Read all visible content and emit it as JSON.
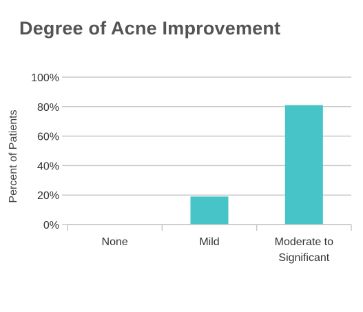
{
  "chart_data": {
    "type": "bar",
    "title": "Degree of Acne Improvement",
    "xlabel": "",
    "ylabel": "Percent of Patients",
    "categories": [
      [
        "None"
      ],
      [
        "Mild"
      ],
      [
        "Moderate to",
        "Significant"
      ]
    ],
    "values": [
      0,
      19,
      81
    ],
    "ylim": [
      0,
      100
    ],
    "yticks": [
      "0%",
      "20%",
      "40%",
      "60%",
      "80%",
      "100%"
    ],
    "ytick_values": [
      0,
      20,
      40,
      60,
      80,
      100
    ],
    "grid": true,
    "legend": "none",
    "bar_color": "#47c4c7",
    "grid_color": "#c8c8c8"
  }
}
